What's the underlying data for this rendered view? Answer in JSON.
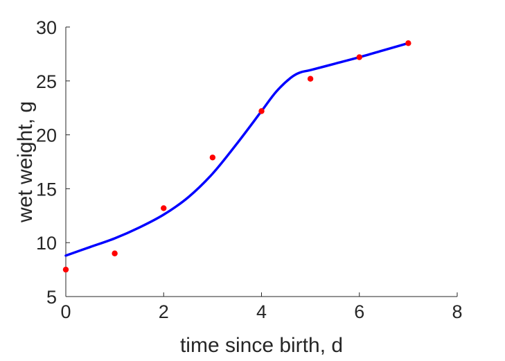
{
  "chart_data": {
    "type": "line",
    "xlabel": "time since birth, d",
    "ylabel": "wet weight, g",
    "xlim": [
      0,
      8
    ],
    "ylim": [
      5,
      30
    ],
    "xticks": [
      0,
      2,
      4,
      6,
      8
    ],
    "yticks": [
      5,
      10,
      15,
      20,
      25,
      30
    ],
    "grid": false,
    "series": [
      {
        "kind": "scatter",
        "color": "#ff0000",
        "x": [
          0,
          1,
          2,
          3,
          4,
          5,
          6,
          7
        ],
        "y": [
          7.5,
          9.0,
          13.2,
          17.9,
          22.2,
          25.2,
          27.2,
          28.5
        ]
      },
      {
        "kind": "line",
        "color": "#0000ff",
        "x": [
          0,
          0.5,
          1,
          1.5,
          2,
          2.5,
          3,
          3.5,
          4,
          4.3,
          4.6,
          4.8,
          5,
          5.5,
          6,
          6.5,
          7
        ],
        "y": [
          8.8,
          9.6,
          10.4,
          11.4,
          12.6,
          14.2,
          16.4,
          19.2,
          22.2,
          24.0,
          25.3,
          25.8,
          26.0,
          26.6,
          27.2,
          27.85,
          28.5
        ]
      }
    ]
  }
}
